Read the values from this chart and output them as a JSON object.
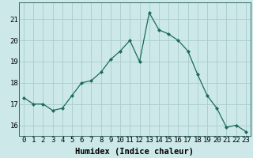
{
  "x": [
    0,
    1,
    2,
    3,
    4,
    5,
    6,
    7,
    8,
    9,
    10,
    11,
    12,
    13,
    14,
    15,
    16,
    17,
    18,
    19,
    20,
    21,
    22,
    23
  ],
  "y": [
    17.3,
    17.0,
    17.0,
    16.7,
    16.8,
    17.4,
    18.0,
    18.1,
    18.5,
    19.1,
    19.5,
    20.0,
    19.0,
    21.3,
    20.5,
    20.3,
    20.0,
    19.5,
    18.4,
    17.4,
    16.8,
    15.9,
    16.0,
    15.7
  ],
  "line_color": "#1a6b5a",
  "marker": "D",
  "marker_size": 2.0,
  "bg_color": "#cce8e8",
  "grid_color": "#aacccc",
  "xlabel": "Humidex (Indice chaleur)",
  "ylim": [
    15.5,
    21.8
  ],
  "xlim": [
    -0.5,
    23.5
  ],
  "yticks": [
    16,
    17,
    18,
    19,
    20,
    21
  ],
  "xticks": [
    0,
    1,
    2,
    3,
    4,
    5,
    6,
    7,
    8,
    9,
    10,
    11,
    12,
    13,
    14,
    15,
    16,
    17,
    18,
    19,
    20,
    21,
    22,
    23
  ],
  "tick_fontsize": 6.5,
  "xlabel_fontsize": 7.5
}
